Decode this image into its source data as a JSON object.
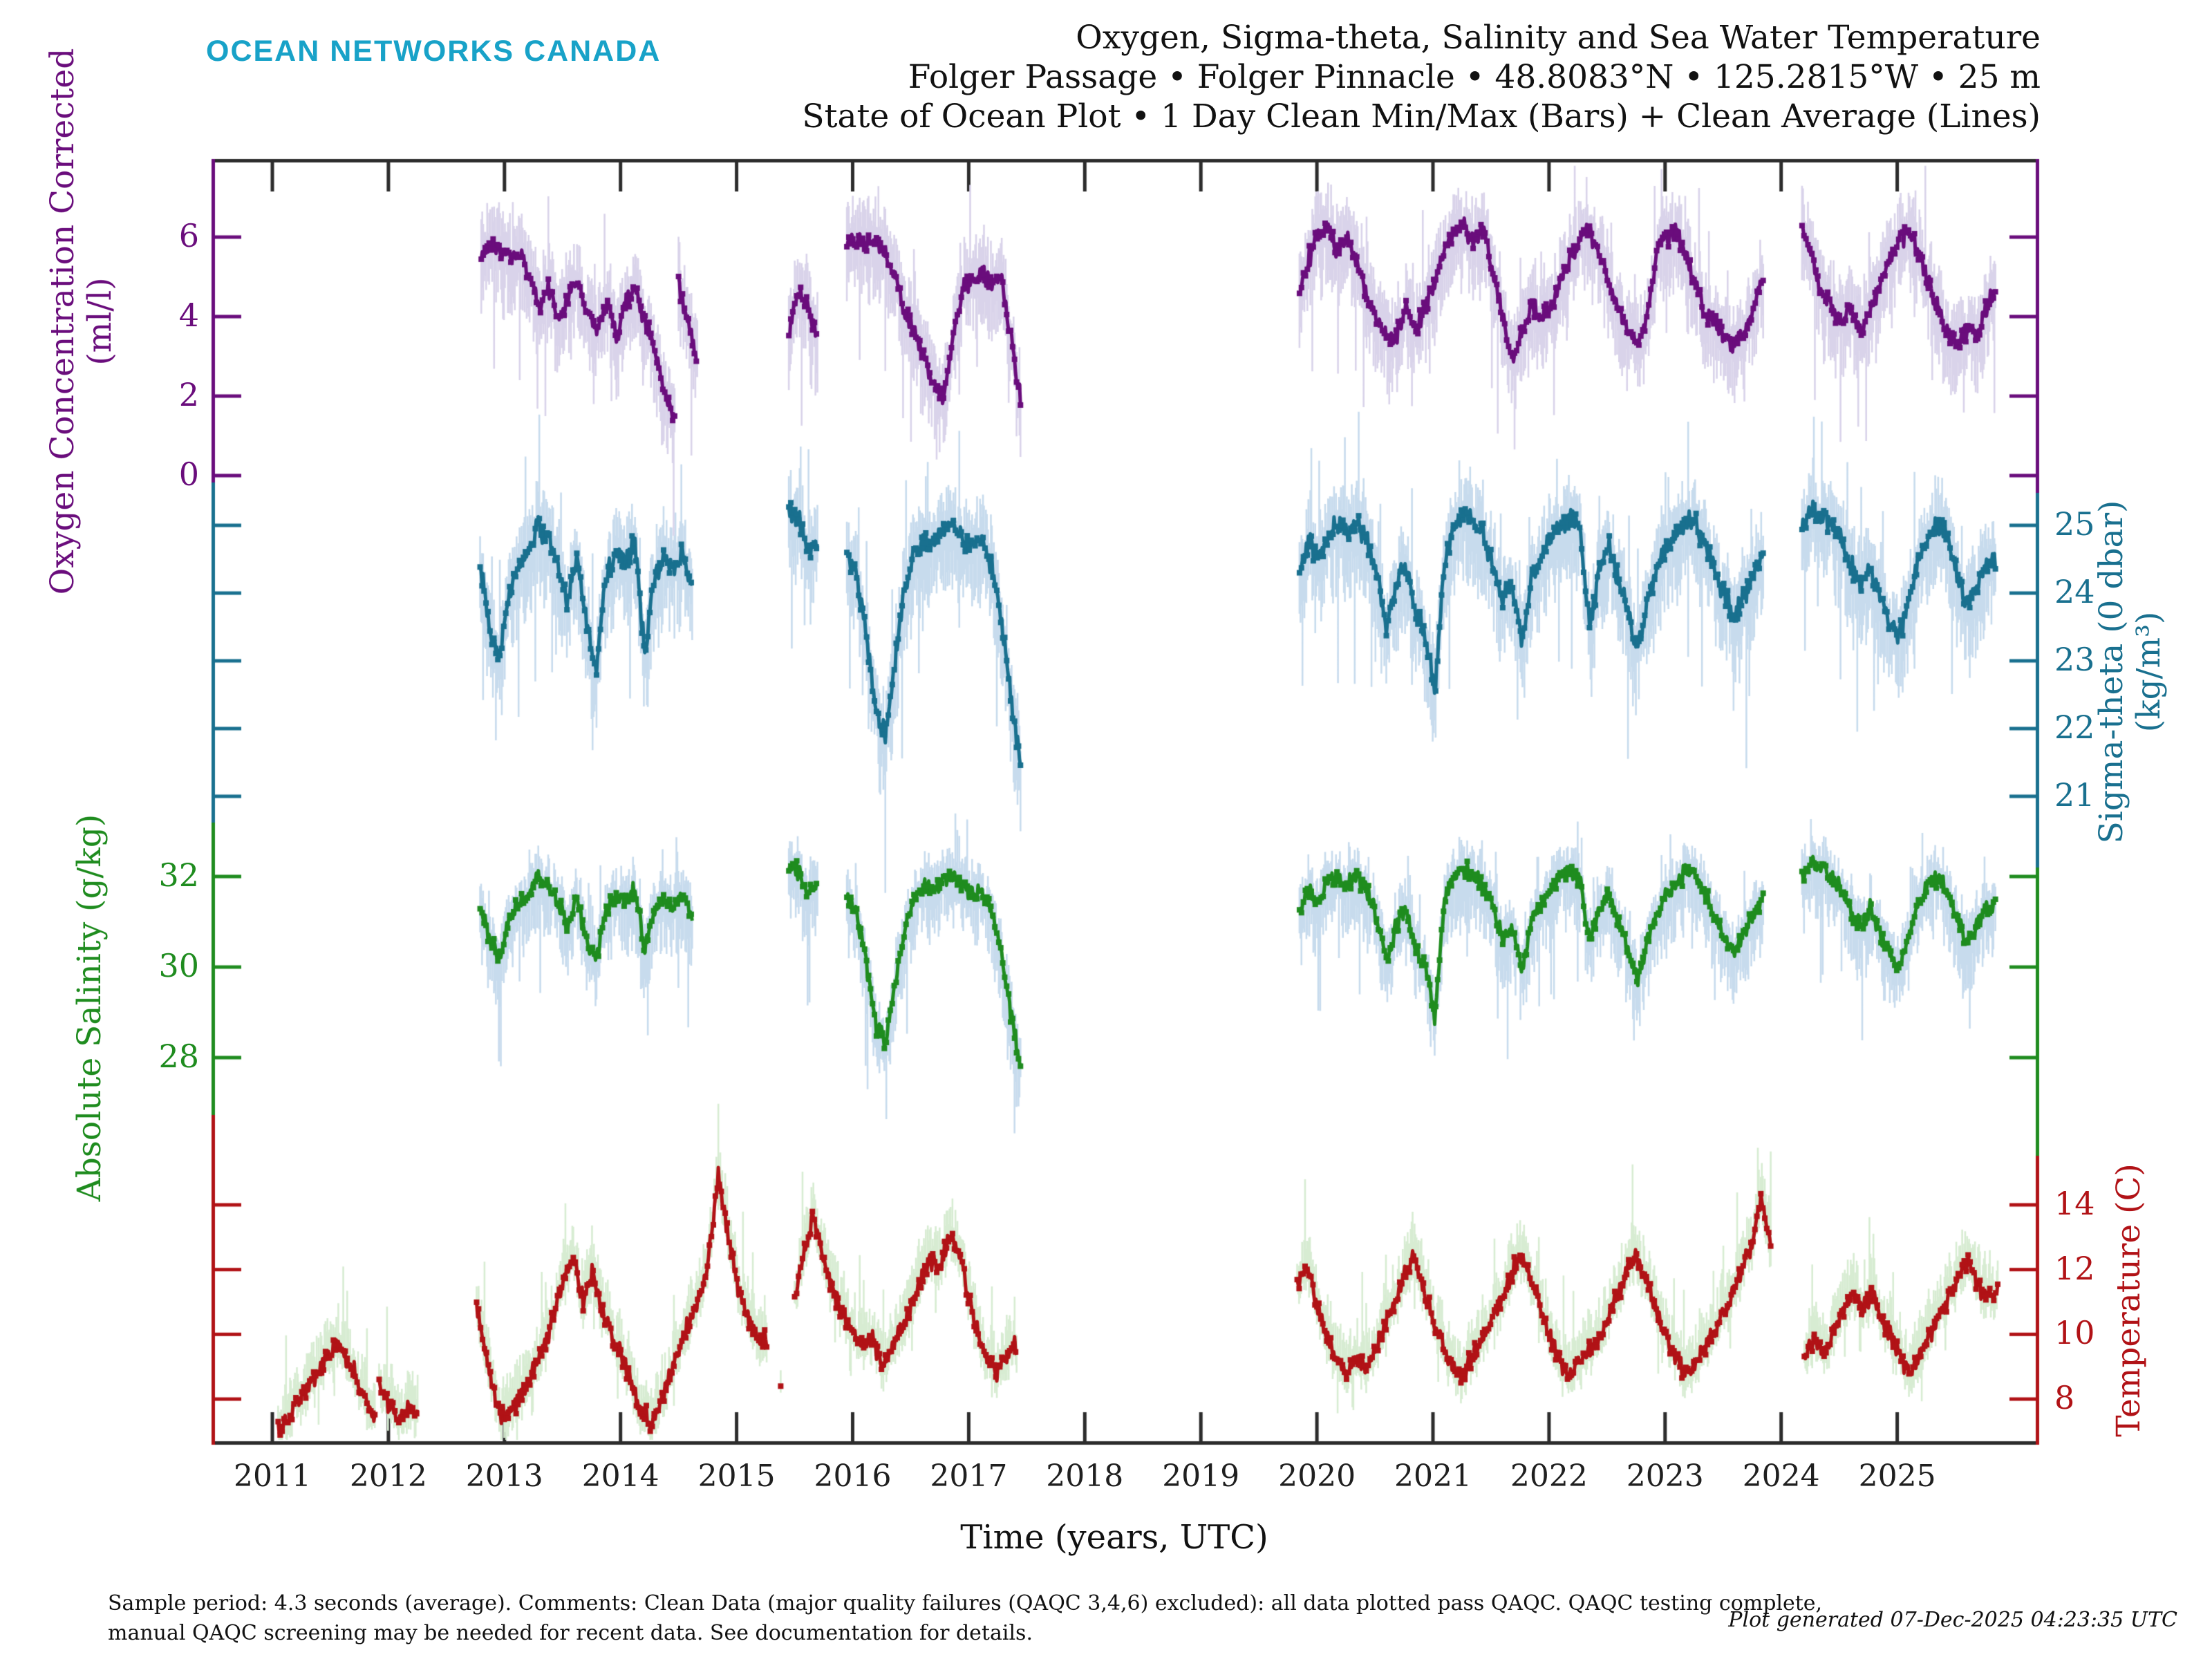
{
  "logo": "OCEAN NETWORKS CANADA",
  "header": {
    "title_lines": [
      "Oxygen, Sigma-theta, Salinity and Sea Water Temperature",
      "Folger Passage • Folger Pinnacle • 48.8083°N • 125.2815°W • 25 m",
      "State of Ocean Plot • 1 Day Clean Min/Max (Bars) + Clean Average (Lines)"
    ]
  },
  "footer": {
    "left_lines": [
      "Sample period: 4.3 seconds (average). Comments: Clean Data (major quality failures (QAQC 3,4,6) excluded): all data plotted pass QAQC. QAQC testing complete,",
      "manual QAQC screening may be needed for recent data. See documentation for details."
    ],
    "generated": "Plot generated 07-Dec-2025 04:23:35 UTC"
  },
  "chart_data": {
    "type": "line",
    "xlabel": "Time (years, UTC)",
    "x_ticks": [
      2011,
      2012,
      2013,
      2014,
      2015,
      2016,
      2017,
      2018,
      2019,
      2020,
      2021,
      2022,
      2023,
      2024,
      2025
    ],
    "x_range": [
      2010.47,
      2026.22
    ],
    "grid": false,
    "legend": "none",
    "panels": [
      {
        "id": "oxygen",
        "lines": [
          "Oxygen Concentration Corrected",
          "(ml/l)"
        ],
        "unit": "ml/l",
        "side": "left",
        "color": "#6a0d7c",
        "bar_color": "#d9d3ea",
        "ticks": [
          6,
          4,
          2,
          0
        ],
        "ylim": [
          -0.2,
          8.0
        ],
        "noise": 0.22,
        "bar_up": 0.85,
        "bar_down": 1.15,
        "segments": [
          {
            "t0": 2012.8,
            "dt": 0.0833,
            "v": [
              5.6,
              5.8,
              5.7,
              5.4,
              5.6,
              4.9,
              4.3,
              4.7,
              4.0,
              4.5,
              4.8,
              4.1,
              3.7,
              4.3,
              3.5,
              4.4,
              4.6,
              3.8,
              3.1,
              2.0,
              1.5
            ]
          },
          {
            "t0": 2014.5,
            "dt": 0.0833,
            "v": [
              4.9,
              3.8,
              2.9
            ]
          },
          {
            "t0": 2015.45,
            "dt": 0.0833,
            "v": [
              3.6,
              4.6,
              4.2,
              3.4
            ]
          },
          {
            "t0": 2015.95,
            "dt": 0.0833,
            "v": [
              5.8,
              5.9,
              5.8,
              5.9,
              5.6,
              4.9,
              4.2,
              3.6,
              2.9,
              2.3,
              2.0,
              3.5,
              4.7,
              4.9,
              5.1,
              4.8,
              5.0,
              3.4,
              1.9
            ]
          },
          {
            "t0": 2019.85,
            "dt": 0.0833,
            "v": [
              4.6,
              5.5,
              6.1,
              6.3,
              5.6,
              6.0,
              5.3,
              4.5,
              3.9,
              3.5,
              3.4,
              4.3,
              3.6,
              4.3,
              4.9,
              5.6,
              6.2,
              6.3,
              5.9,
              6.2,
              5.1,
              4.0,
              2.9,
              3.6,
              4.3,
              3.9,
              4.3,
              4.9,
              5.5,
              6.0,
              6.2,
              5.6,
              4.9,
              4.2,
              3.6,
              3.4,
              4.0,
              5.7,
              6.0,
              6.2,
              5.5,
              4.8,
              4.1,
              3.8,
              3.5,
              3.3,
              3.6,
              4.2,
              5.0
            ]
          },
          {
            "t0": 2024.18,
            "dt": 0.0833,
            "v": [
              6.2,
              5.5,
              4.6,
              4.3,
              3.9,
              4.2,
              3.6,
              4.1,
              4.8,
              5.4,
              5.9,
              6.1,
              5.7,
              4.9,
              4.2,
              3.6,
              3.3,
              3.7,
              3.5,
              4.2,
              4.6
            ]
          }
        ]
      },
      {
        "id": "sigma",
        "lines": [
          "Sigma-theta (0 dbar)",
          "(kg/m³)"
        ],
        "unit": "kg/m³",
        "side": "right",
        "color": "#19708f",
        "bar_color": "#c7dbed",
        "ticks": [
          25,
          24,
          23,
          22,
          21
        ],
        "ylim": [
          20.1,
          25.6
        ],
        "noise": 0.15,
        "bar_up": 0.5,
        "bar_down": 0.8,
        "segments": [
          {
            "t0": 2012.79,
            "dt": 0.0833,
            "v": [
              24.4,
              23.5,
              23.0,
              24.0,
              24.4,
              24.6,
              25.0,
              24.8,
              24.4,
              23.9,
              24.5,
              23.6,
              22.9,
              24.2,
              24.6,
              24.4,
              24.8,
              23.1,
              24.2,
              24.5,
              24.4,
              24.6,
              23.9
            ]
          },
          {
            "t0": 2015.45,
            "dt": 0.0833,
            "v": [
              25.2,
              25.1,
              24.6,
              24.8
            ]
          },
          {
            "t0": 2015.95,
            "dt": 0.0833,
            "v": [
              24.6,
              24.3,
              23.4,
              22.2,
              21.9,
              23.0,
              24.1,
              24.6,
              24.8,
              24.7,
              24.9,
              25.0,
              24.8,
              24.7,
              24.8,
              24.4,
              23.6,
              22.4,
              21.4
            ]
          },
          {
            "t0": 2019.85,
            "dt": 0.0833,
            "v": [
              24.3,
              24.8,
              24.5,
              24.9,
              25.0,
              24.9,
              25.0,
              24.8,
              24.3,
              23.5,
              24.1,
              24.4,
              23.7,
              23.4,
              22.5,
              24.5,
              25.0,
              25.2,
              25.0,
              24.9,
              24.4,
              23.9,
              24.1,
              23.3,
              24.2,
              24.5,
              24.9,
              25.0,
              25.1,
              24.9,
              23.5,
              24.3,
              24.7,
              24.2,
              23.7,
              23.1,
              23.9,
              24.3,
              24.7,
              24.9,
              25.1,
              25.0,
              24.7,
              24.3,
              24.0,
              23.6,
              24.0,
              24.3,
              24.6
            ]
          },
          {
            "t0": 2024.18,
            "dt": 0.0833,
            "v": [
              25.0,
              25.2,
              25.1,
              25.0,
              24.8,
              24.4,
              24.1,
              24.4,
              24.0,
              23.6,
              23.3,
              23.9,
              24.5,
              24.8,
              25.0,
              24.8,
              24.3,
              23.8,
              24.1,
              24.4,
              24.5
            ]
          }
        ]
      },
      {
        "id": "salinity",
        "lines": [
          "Absolute Salinity (g/kg)"
        ],
        "unit": "g/kg",
        "side": "left",
        "color": "#1f8c1f",
        "bar_color": "#c7dbed",
        "ticks": [
          32,
          30,
          28
        ],
        "ylim": [
          25.9,
          32.4
        ],
        "noise": 0.18,
        "bar_up": 0.5,
        "bar_down": 0.95,
        "segments": [
          {
            "t0": 2012.79,
            "dt": 0.0833,
            "v": [
              31.3,
              30.6,
              30.2,
              31.0,
              31.4,
              31.6,
              32.0,
              31.8,
              31.4,
              30.9,
              31.5,
              30.6,
              30.2,
              31.2,
              31.6,
              31.4,
              31.8,
              30.4,
              31.2,
              31.5,
              31.4,
              31.6,
              31.0
            ]
          },
          {
            "t0": 2015.45,
            "dt": 0.0833,
            "v": [
              32.3,
              32.1,
              31.6,
              31.8
            ]
          },
          {
            "t0": 2015.95,
            "dt": 0.0833,
            "v": [
              31.5,
              31.2,
              30.1,
              28.7,
              28.3,
              29.6,
              30.9,
              31.5,
              31.8,
              31.7,
              31.9,
              32.0,
              31.8,
              31.6,
              31.7,
              31.2,
              30.3,
              28.9,
              27.7
            ]
          },
          {
            "t0": 2019.85,
            "dt": 0.0833,
            "v": [
              31.2,
              31.7,
              31.4,
              31.9,
              32.0,
              31.8,
              32.0,
              31.7,
              31.1,
              30.2,
              30.9,
              31.3,
              30.4,
              30.0,
              28.9,
              31.5,
              32.0,
              32.2,
              32.0,
              31.8,
              31.3,
              30.6,
              30.9,
              29.9,
              31.0,
              31.4,
              31.8,
              32.0,
              32.1,
              31.9,
              30.6,
              31.2,
              31.6,
              31.0,
              30.4,
              29.7,
              30.6,
              31.2,
              31.6,
              31.9,
              32.1,
              32.0,
              31.6,
              31.1,
              30.7,
              30.3,
              30.8,
              31.2,
              31.5
            ]
          },
          {
            "t0": 2024.18,
            "dt": 0.0833,
            "v": [
              32.0,
              32.3,
              32.2,
              32.0,
              31.7,
              31.3,
              30.9,
              31.3,
              30.8,
              30.3,
              29.9,
              30.7,
              31.4,
              31.8,
              32.0,
              31.7,
              31.1,
              30.5,
              30.9,
              31.3,
              31.4
            ]
          }
        ]
      },
      {
        "id": "temperature",
        "lines": [
          "Temperature (C)"
        ],
        "unit": "C",
        "side": "right",
        "color": "#b11216",
        "bar_color": "#d7ecd2",
        "ticks": [
          14,
          12,
          10,
          8
        ],
        "ylim": [
          6.6,
          15.5
        ],
        "noise": 0.28,
        "bar_up": 0.95,
        "bar_down": 0.55,
        "segments": [
          {
            "t0": 2011.05,
            "dt": 0.0833,
            "v": [
              7.0,
              7.4,
              7.9,
              8.3,
              8.8,
              9.3,
              9.7,
              9.3,
              8.7,
              8.0,
              7.5
            ]
          },
          {
            "t0": 2011.92,
            "dt": 0.0833,
            "v": [
              8.5,
              7.9,
              7.4,
              7.7,
              7.5
            ]
          },
          {
            "t0": 2012.76,
            "dt": 0.0833,
            "v": [
              10.9,
              9.2,
              7.8,
              7.4,
              7.9,
              8.3,
              8.9,
              9.7,
              10.6,
              11.7,
              12.4,
              11.0,
              11.9,
              10.7,
              9.9,
              9.4,
              8.5,
              7.7,
              7.2,
              7.9,
              8.7,
              9.6,
              10.4,
              11.1,
              12.3,
              15.0,
              13.0,
              11.4,
              10.5,
              10.0,
              9.8
            ]
          },
          {
            "t0": 2015.38,
            "dt": 0.0833,
            "v": [
              8.4
            ]
          },
          {
            "t0": 2015.5,
            "dt": 0.0833,
            "v": [
              11.2,
              12.6,
              13.7,
              12.3,
              11.3,
              10.6,
              10.1,
              9.6,
              9.9,
              9.1,
              9.6,
              10.2,
              10.9,
              11.6,
              12.3,
              12.0,
              13.1,
              12.6,
              11.2,
              10.0,
              9.2,
              8.8,
              9.3,
              9.7
            ]
          },
          {
            "t0": 2019.83,
            "dt": 0.0833,
            "v": [
              11.6,
              12.1,
              10.9,
              10.0,
              9.3,
              8.8,
              9.3,
              8.9,
              9.5,
              10.2,
              10.9,
              11.7,
              12.5,
              11.5,
              10.5,
              9.7,
              9.0,
              8.7,
              9.2,
              9.7,
              10.3,
              11.0,
              11.8,
              12.5,
              11.9,
              11.0,
              10.1,
              9.3,
              8.7,
              9.0,
              9.4,
              9.8,
              10.4,
              11.1,
              11.9,
              12.4,
              11.8,
              10.9,
              10.2,
              9.4,
              8.8,
              9.1,
              9.5,
              10.0,
              10.6,
              11.3,
              12.0,
              12.9,
              14.2,
              12.7
            ]
          },
          {
            "t0": 2024.2,
            "dt": 0.0833,
            "v": [
              9.3,
              9.9,
              9.4,
              10.1,
              10.7,
              11.3,
              10.7,
              11.4,
              10.5,
              9.8,
              9.3,
              8.9,
              9.4,
              10.0,
              10.6,
              11.2,
              11.8,
              12.4,
              11.5,
              11.2,
              11.4
            ]
          }
        ]
      }
    ]
  }
}
